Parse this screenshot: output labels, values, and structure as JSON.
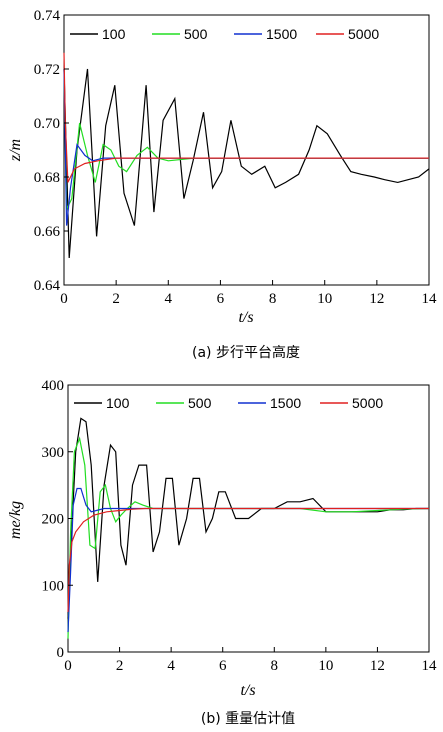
{
  "chart_data": [
    {
      "type": "line",
      "caption": "(a) 步行平台高度",
      "xlabel": "t/s",
      "ylabel": "z/m",
      "xlim": [
        0,
        14
      ],
      "ylim": [
        0.64,
        0.74
      ],
      "xticks": [
        "0",
        "2",
        "4",
        "6",
        "8",
        "10",
        "12",
        "14"
      ],
      "yticks": [
        "0.64",
        "0.66",
        "0.68",
        "0.70",
        "0.72",
        "0.74"
      ],
      "grid": false,
      "legend_position": "top",
      "series": [
        {
          "name": "100",
          "color": "#000000",
          "x": [
            0,
            0.2,
            0.5,
            0.9,
            1.25,
            1.6,
            1.95,
            2.3,
            2.7,
            3.15,
            3.45,
            3.8,
            4.25,
            4.6,
            4.95,
            5.35,
            5.7,
            6.05,
            6.4,
            6.8,
            7.2,
            7.7,
            8.1,
            8.5,
            9,
            9.4,
            9.7,
            10.1,
            10.6,
            11,
            11.4,
            11.9,
            12.3,
            12.8,
            13.2,
            13.6,
            14
          ],
          "y": [
            0.72,
            0.65,
            0.69,
            0.72,
            0.658,
            0.699,
            0.714,
            0.674,
            0.662,
            0.714,
            0.667,
            0.701,
            0.709,
            0.672,
            0.686,
            0.704,
            0.676,
            0.682,
            0.701,
            0.684,
            0.681,
            0.684,
            0.676,
            0.678,
            0.681,
            0.69,
            0.699,
            0.696,
            0.688,
            0.682,
            0.681,
            0.68,
            0.679,
            0.678,
            0.679,
            0.68,
            0.683
          ]
        },
        {
          "name": "500",
          "color": "#22dd22",
          "x": [
            0,
            0.1,
            0.3,
            0.6,
            0.9,
            1.2,
            1.5,
            1.8,
            2.1,
            2.4,
            2.8,
            3.2,
            3.6,
            4,
            5,
            6,
            7,
            8,
            9,
            10,
            11,
            12,
            13,
            14
          ],
          "y": [
            0.72,
            0.668,
            0.672,
            0.7,
            0.688,
            0.678,
            0.692,
            0.69,
            0.684,
            0.682,
            0.688,
            0.691,
            0.687,
            0.686,
            0.687,
            0.687,
            0.687,
            0.687,
            0.687,
            0.687,
            0.687,
            0.687,
            0.687,
            0.687
          ]
        },
        {
          "name": "1500",
          "color": "#1030d0",
          "x": [
            0,
            0.1,
            0.25,
            0.5,
            0.8,
            1.1,
            1.5,
            2,
            3,
            4,
            5,
            6,
            7,
            8,
            9,
            10,
            11,
            12,
            13,
            14
          ],
          "y": [
            0.72,
            0.662,
            0.676,
            0.692,
            0.688,
            0.686,
            0.687,
            0.687,
            0.687,
            0.687,
            0.687,
            0.687,
            0.687,
            0.687,
            0.687,
            0.687,
            0.687,
            0.687,
            0.687,
            0.687
          ]
        },
        {
          "name": "5000",
          "color": "#e02020",
          "x": [
            0,
            0.05,
            0.15,
            0.4,
            0.8,
            1.3,
            2,
            3,
            4,
            5,
            6,
            7,
            8,
            9,
            10,
            11,
            12,
            13,
            14
          ],
          "y": [
            0.726,
            0.7,
            0.678,
            0.683,
            0.685,
            0.686,
            0.687,
            0.687,
            0.687,
            0.687,
            0.687,
            0.687,
            0.687,
            0.687,
            0.687,
            0.687,
            0.687,
            0.687,
            0.687
          ]
        }
      ]
    },
    {
      "type": "line",
      "caption": "(b) 重量估计值",
      "xlabel": "t/s",
      "ylabel": "me/kg",
      "xlim": [
        0,
        14
      ],
      "ylim": [
        0,
        400
      ],
      "xticks": [
        "0",
        "2",
        "4",
        "6",
        "8",
        "10",
        "12",
        "14"
      ],
      "yticks": [
        "0",
        "100",
        "200",
        "300",
        "400"
      ],
      "grid": false,
      "legend_position": "top",
      "series": [
        {
          "name": "100",
          "color": "#000000",
          "x": [
            0,
            0.1,
            0.3,
            0.5,
            0.7,
            0.9,
            1.15,
            1.4,
            1.65,
            1.85,
            2.05,
            2.25,
            2.5,
            2.75,
            3.05,
            3.3,
            3.55,
            3.8,
            4.05,
            4.3,
            4.6,
            4.85,
            5.1,
            5.35,
            5.6,
            5.85,
            6.1,
            6.5,
            7,
            7.5,
            8,
            8.5,
            9,
            9.5,
            10,
            10.5,
            11,
            11.5,
            12,
            12.5,
            13,
            13.5,
            14
          ],
          "y": [
            50,
            150,
            300,
            350,
            345,
            280,
            105,
            250,
            310,
            300,
            160,
            130,
            250,
            280,
            280,
            150,
            180,
            260,
            260,
            160,
            200,
            260,
            260,
            180,
            200,
            240,
            240,
            200,
            200,
            215,
            215,
            225,
            225,
            230,
            210,
            210,
            210,
            210,
            210,
            213,
            213,
            215,
            215
          ]
        },
        {
          "name": "500",
          "color": "#22dd22",
          "x": [
            0,
            0.1,
            0.25,
            0.45,
            0.65,
            0.85,
            1.05,
            1.25,
            1.45,
            1.65,
            1.85,
            2.05,
            2.3,
            2.6,
            2.9,
            3.3,
            4,
            5,
            6,
            7,
            8,
            9,
            10,
            11,
            12,
            13,
            14
          ],
          "y": [
            20,
            180,
            300,
            320,
            280,
            160,
            155,
            240,
            250,
            215,
            195,
            205,
            215,
            225,
            220,
            215,
            215,
            215,
            215,
            215,
            215,
            215,
            210,
            210,
            212,
            214,
            215
          ]
        },
        {
          "name": "1500",
          "color": "#1030d0",
          "x": [
            0,
            0.1,
            0.2,
            0.35,
            0.5,
            0.7,
            0.9,
            1.1,
            1.4,
            1.8,
            2.5,
            3,
            4,
            5,
            6,
            7,
            8,
            9,
            10,
            11,
            12,
            13,
            14
          ],
          "y": [
            30,
            120,
            220,
            245,
            245,
            220,
            210,
            212,
            215,
            215,
            215,
            215,
            215,
            215,
            215,
            215,
            215,
            215,
            215,
            215,
            215,
            215,
            215
          ]
        },
        {
          "name": "5000",
          "color": "#e02020",
          "x": [
            0,
            0.05,
            0.15,
            0.3,
            0.6,
            1,
            1.5,
            2,
            2.5,
            3,
            4,
            5,
            6,
            7,
            8,
            9,
            10,
            11,
            12,
            13,
            14
          ],
          "y": [
            60,
            130,
            165,
            180,
            195,
            205,
            210,
            212,
            214,
            215,
            215,
            215,
            215,
            215,
            215,
            215,
            215,
            215,
            215,
            215,
            215
          ]
        }
      ]
    }
  ]
}
